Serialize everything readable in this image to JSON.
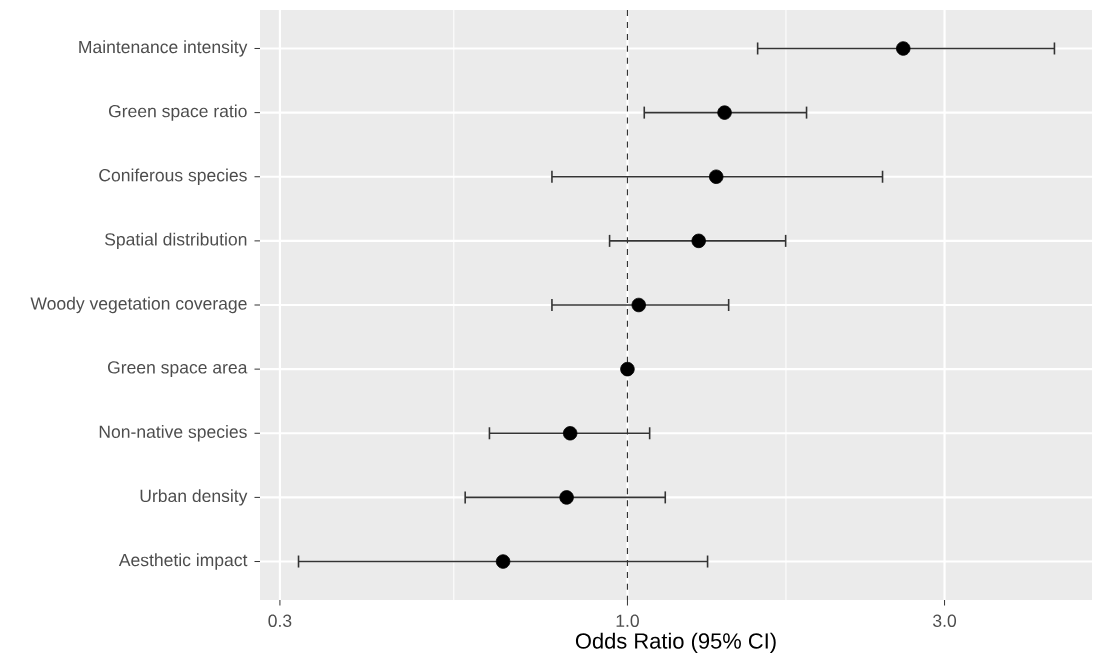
{
  "chart_data": {
    "type": "scatter",
    "orientation": "horizontal",
    "categories": [
      "Maintenance intensity",
      "Green space ratio",
      "Coniferous species",
      "Spatial distribution",
      "Woody vegetation coverage",
      "Green space area",
      "Non-native species",
      "Urban density",
      "Aesthetic impact"
    ],
    "values": [
      2.6,
      1.4,
      1.36,
      1.28,
      1.04,
      1.0,
      0.82,
      0.81,
      0.65
    ],
    "errors": [
      [
        1.57,
        4.39
      ],
      [
        1.06,
        1.86
      ],
      [
        0.77,
        2.42
      ],
      [
        0.94,
        1.73
      ],
      [
        0.77,
        1.42
      ],
      null,
      [
        0.62,
        1.08
      ],
      [
        0.57,
        1.14
      ],
      [
        0.32,
        1.32
      ]
    ],
    "color": "#000000",
    "marker": "circle",
    "xlabel": "Odds Ratio (95% CI)",
    "log": "x",
    "xlim": [
      0.28,
      5.0
    ],
    "xticks": [
      0.3,
      {
        "value": 0.548,
        "label": null
      },
      {
        "value": 1,
        "label": "1.0"
      },
      {
        "value": 1.732,
        "label": null
      },
      {
        "value": 3,
        "label": "3.0"
      }
    ],
    "grid": true,
    "ref_lines": [
      {
        "axis": "x",
        "value": 1,
        "line_style": "dashed",
        "color": "#333333"
      }
    ]
  }
}
